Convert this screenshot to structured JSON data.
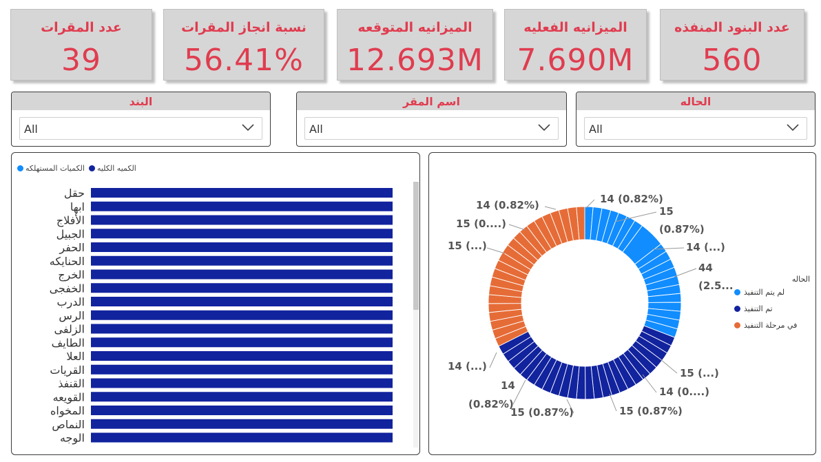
{
  "kpis": [
    {
      "title": "عدد البنود المنفذه",
      "value": "560"
    },
    {
      "title": "الميزانيه الفعليه",
      "value": "7.690M"
    },
    {
      "title": "الميزانيه المتوقعه",
      "value": "12.693M"
    },
    {
      "title": "نسبة انجاز المقرات",
      "value": "56.41%"
    },
    {
      "title": "عدد المقرات",
      "value": "39"
    }
  ],
  "slicers": [
    {
      "title": "الحاله",
      "value": "All"
    },
    {
      "title": "اسم المقر",
      "value": "All"
    },
    {
      "title": "البند",
      "value": "All"
    }
  ],
  "bar_legend": [
    {
      "label": "الكميه الكليه",
      "color": "#12239e"
    },
    {
      "label": "الكميات المستهلكه",
      "color": "#118dff"
    }
  ],
  "pie_legend": {
    "title": "الحاله",
    "items": [
      {
        "label": "لم يتم التنفيذ",
        "color": "#118dff"
      },
      {
        "label": "تم التنفيذ",
        "color": "#12239e"
      },
      {
        "label": "في مرحلة التنفيذ",
        "color": "#e66c37"
      }
    ]
  },
  "chart_data": [
    {
      "type": "bar",
      "orientation": "horizontal",
      "legend": [
        "الكميه الكليه",
        "الكميات المستهلكه"
      ],
      "categories": [
        "حقل",
        "ابها",
        "الأفلاج",
        "الجبيل",
        "الحفر",
        "الحنايكه",
        "الخرج",
        "الخفجى",
        "الدرب",
        "الرس",
        "الزلفى",
        "الطايف",
        "العلا",
        "القريات",
        "القنفذ",
        "القويعه",
        "المخواه",
        "النماص",
        "الوجه"
      ],
      "series": [
        {
          "name": "الكميه الكليه",
          "color": "#12239e",
          "values": [
            1,
            1,
            1,
            1,
            1,
            1,
            1,
            1,
            1,
            1,
            1,
            1,
            1,
            1,
            1,
            1,
            1,
            1,
            1
          ]
        }
      ],
      "xlim": [
        0,
        1
      ],
      "grid": false,
      "legend_position": "top-left"
    },
    {
      "type": "pie",
      "donut": true,
      "legend_title": "الحاله",
      "legend_position": "right",
      "groups": [
        {
          "name": "لم يتم التنفيذ",
          "color": "#118dff",
          "values": [
            14,
            15,
            15,
            14,
            15,
            15,
            15,
            44,
            15,
            15,
            15,
            15,
            15,
            15,
            15,
            15,
            15,
            15,
            15
          ]
        },
        {
          "name": "تم التنفيذ",
          "color": "#12239e",
          "values": [
            15,
            14,
            15,
            15,
            15,
            15,
            15,
            15,
            15,
            14,
            15,
            15,
            15,
            15,
            15,
            15,
            15,
            15,
            15,
            15,
            14,
            15,
            15,
            15,
            15
          ]
        },
        {
          "name": "في مرحلة التنفيذ",
          "color": "#e66c37",
          "values": [
            14,
            15,
            15,
            15,
            15,
            15,
            15,
            15,
            15,
            15,
            15,
            15,
            15,
            15,
            15,
            15,
            15,
            15,
            15,
            15,
            15,
            14
          ]
        }
      ],
      "data_labels": [
        "14 (0.82%)",
        "15",
        "(0.87%)",
        "14 (...)",
        "44",
        "(2.5...",
        "15 (...)",
        "14 (0....)",
        "15 (0.87%)",
        "15 (0.87%)",
        "14",
        "(0.82%)",
        "14 (...)",
        "15 (...)",
        "15 (0....)",
        "14 (0.82%)"
      ]
    }
  ]
}
